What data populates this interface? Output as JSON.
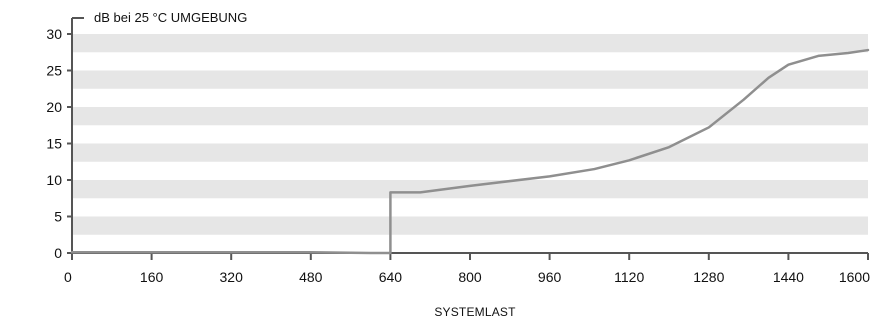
{
  "chart_data": {
    "type": "line",
    "ylabel": "dB bei 25 °C UMGEBUNG",
    "xlabel": "SYSTEMLAST",
    "xlim": [
      0,
      1600
    ],
    "ylim": [
      0,
      30
    ],
    "x_ticks": [
      0,
      160,
      320,
      480,
      640,
      800,
      960,
      1120,
      1280,
      1440,
      1600
    ],
    "y_ticks": [
      0,
      5,
      10,
      15,
      20,
      25,
      30
    ],
    "grid": "horizontal-bands",
    "series": [
      {
        "color": "#8f8f8f",
        "points": [
          [
            0,
            0.1
          ],
          [
            160,
            0.1
          ],
          [
            320,
            0.1
          ],
          [
            480,
            0.1
          ],
          [
            600,
            0.0
          ],
          [
            640,
            0.0
          ],
          [
            640,
            8.3
          ],
          [
            700,
            8.3
          ],
          [
            800,
            9.2
          ],
          [
            960,
            10.5
          ],
          [
            1050,
            11.5
          ],
          [
            1120,
            12.7
          ],
          [
            1200,
            14.5
          ],
          [
            1280,
            17.2
          ],
          [
            1350,
            21.0
          ],
          [
            1400,
            24.0
          ],
          [
            1440,
            25.8
          ],
          [
            1500,
            27.0
          ],
          [
            1560,
            27.4
          ],
          [
            1600,
            27.8
          ]
        ]
      }
    ],
    "colors": {
      "band": "#e6e6e6",
      "axis": "#555555",
      "line": "#8f8f8f"
    }
  }
}
